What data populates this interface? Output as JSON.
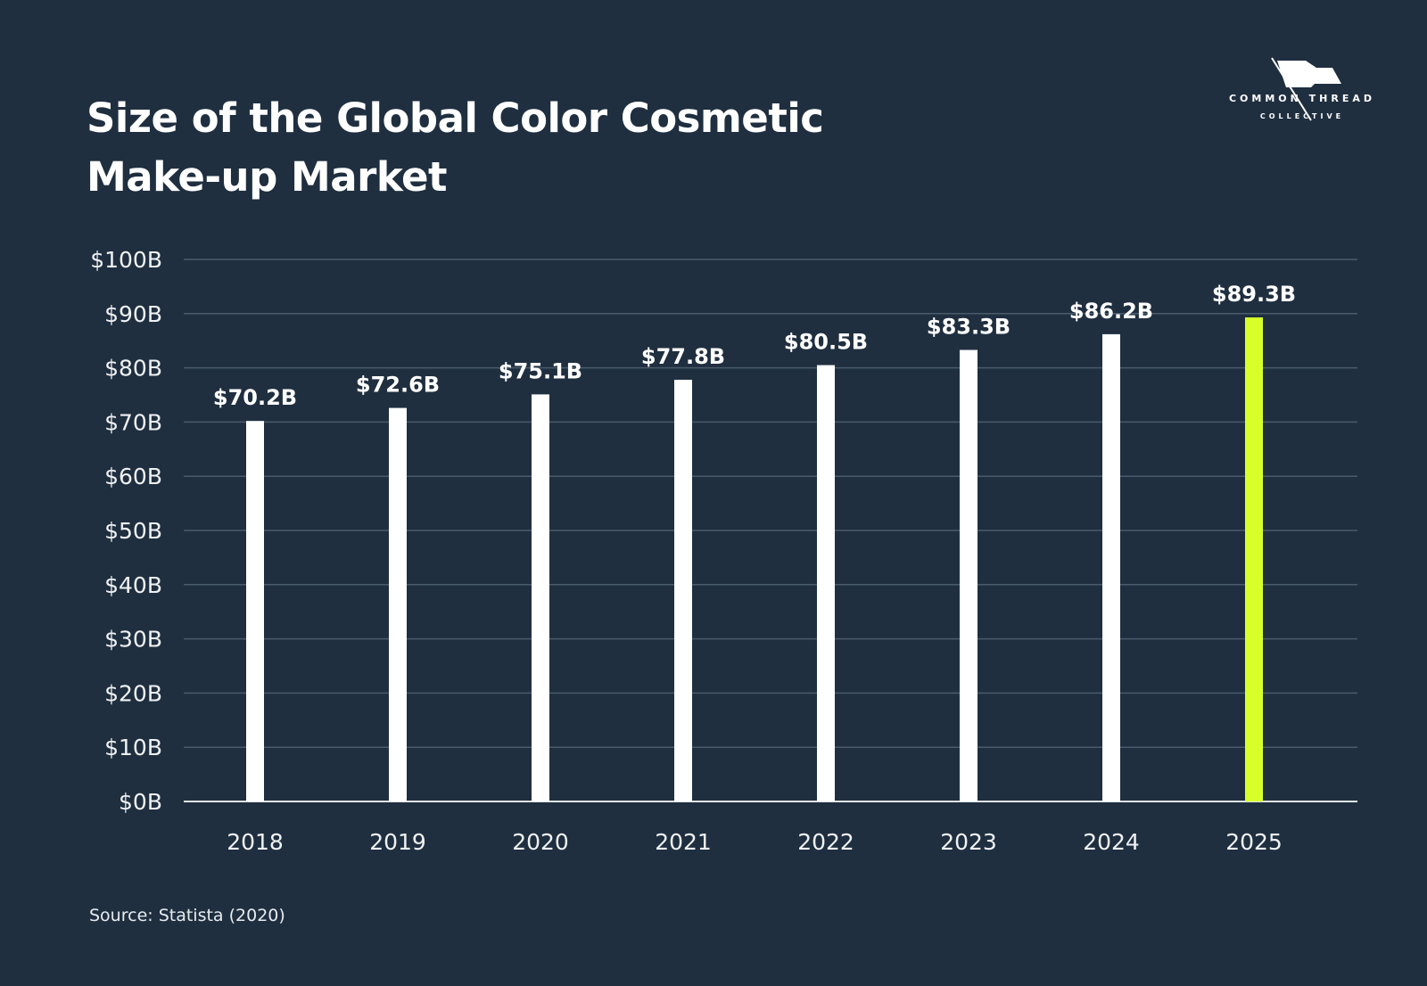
{
  "title_lines": [
    "Size of the Global Color Cosmetic",
    "Make-up Market"
  ],
  "logo": {
    "line1": "COMMON THREAD",
    "line2": "COLLECTIVE"
  },
  "source": "Source: Statista (2020)",
  "colors": {
    "background": "#1f2f40",
    "bar": "#ffffff",
    "highlight": "#d8ff2a",
    "grid": "#4a5b6c"
  },
  "chart_data": {
    "type": "bar",
    "title": "Size of the Global Color Cosmetic Make-up Market",
    "xlabel": "",
    "ylabel": "",
    "categories": [
      "2018",
      "2019",
      "2020",
      "2021",
      "2022",
      "2023",
      "2024",
      "2025"
    ],
    "values": [
      70.2,
      72.6,
      75.1,
      77.8,
      80.5,
      83.3,
      86.2,
      89.3
    ],
    "data_labels": [
      "$70.2B",
      "$72.6B",
      "$75.1B",
      "$77.8B",
      "$80.5B",
      "$83.3B",
      "$86.2B",
      "$89.3B"
    ],
    "highlight_category": "2025",
    "ylim": [
      0,
      100
    ],
    "yticks": [
      0,
      10,
      20,
      30,
      40,
      50,
      60,
      70,
      80,
      90,
      100
    ],
    "ytick_labels": [
      "$0B",
      "$10B",
      "$20B",
      "$30B",
      "$40B",
      "$50B",
      "$60B",
      "$70B",
      "$80B",
      "$90B",
      "$100B"
    ],
    "grid": true,
    "legend": "none"
  }
}
